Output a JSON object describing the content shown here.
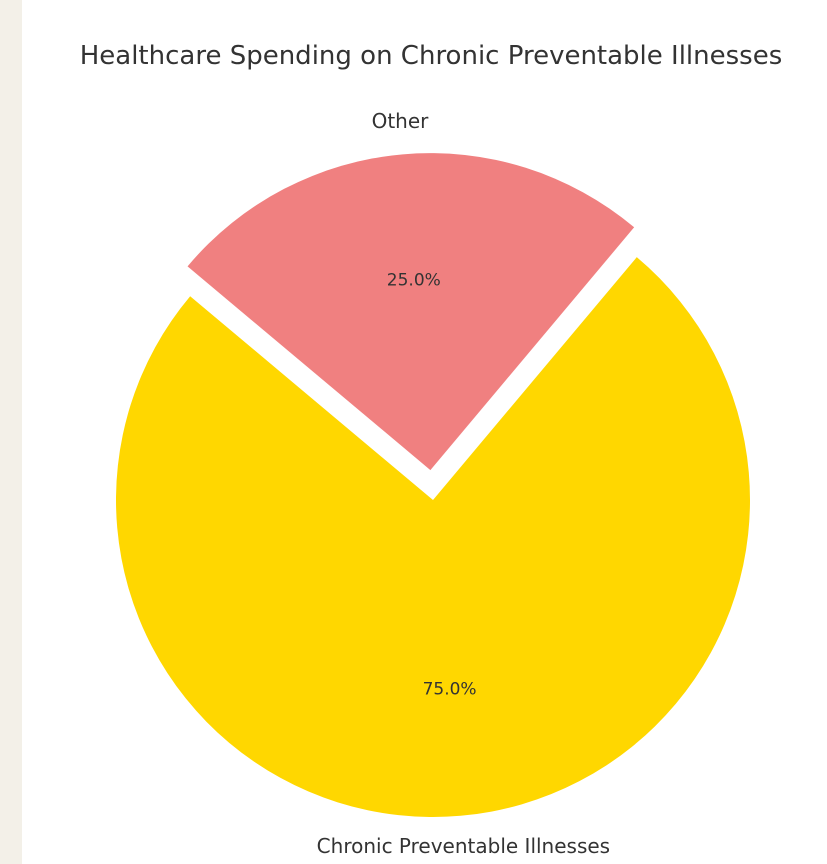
{
  "chart_data": {
    "type": "pie",
    "title": "Healthcare Spending on Chronic Preventable Illnesses",
    "slices": [
      {
        "label": "Chronic Preventable Illnesses",
        "value": 75.0,
        "pct_label": "75.0%",
        "color": "#ffd700",
        "exploded": false
      },
      {
        "label": "Other",
        "value": 25.0,
        "pct_label": "25.0%",
        "color": "#f08080",
        "exploded": true
      }
    ],
    "legend": "none"
  }
}
